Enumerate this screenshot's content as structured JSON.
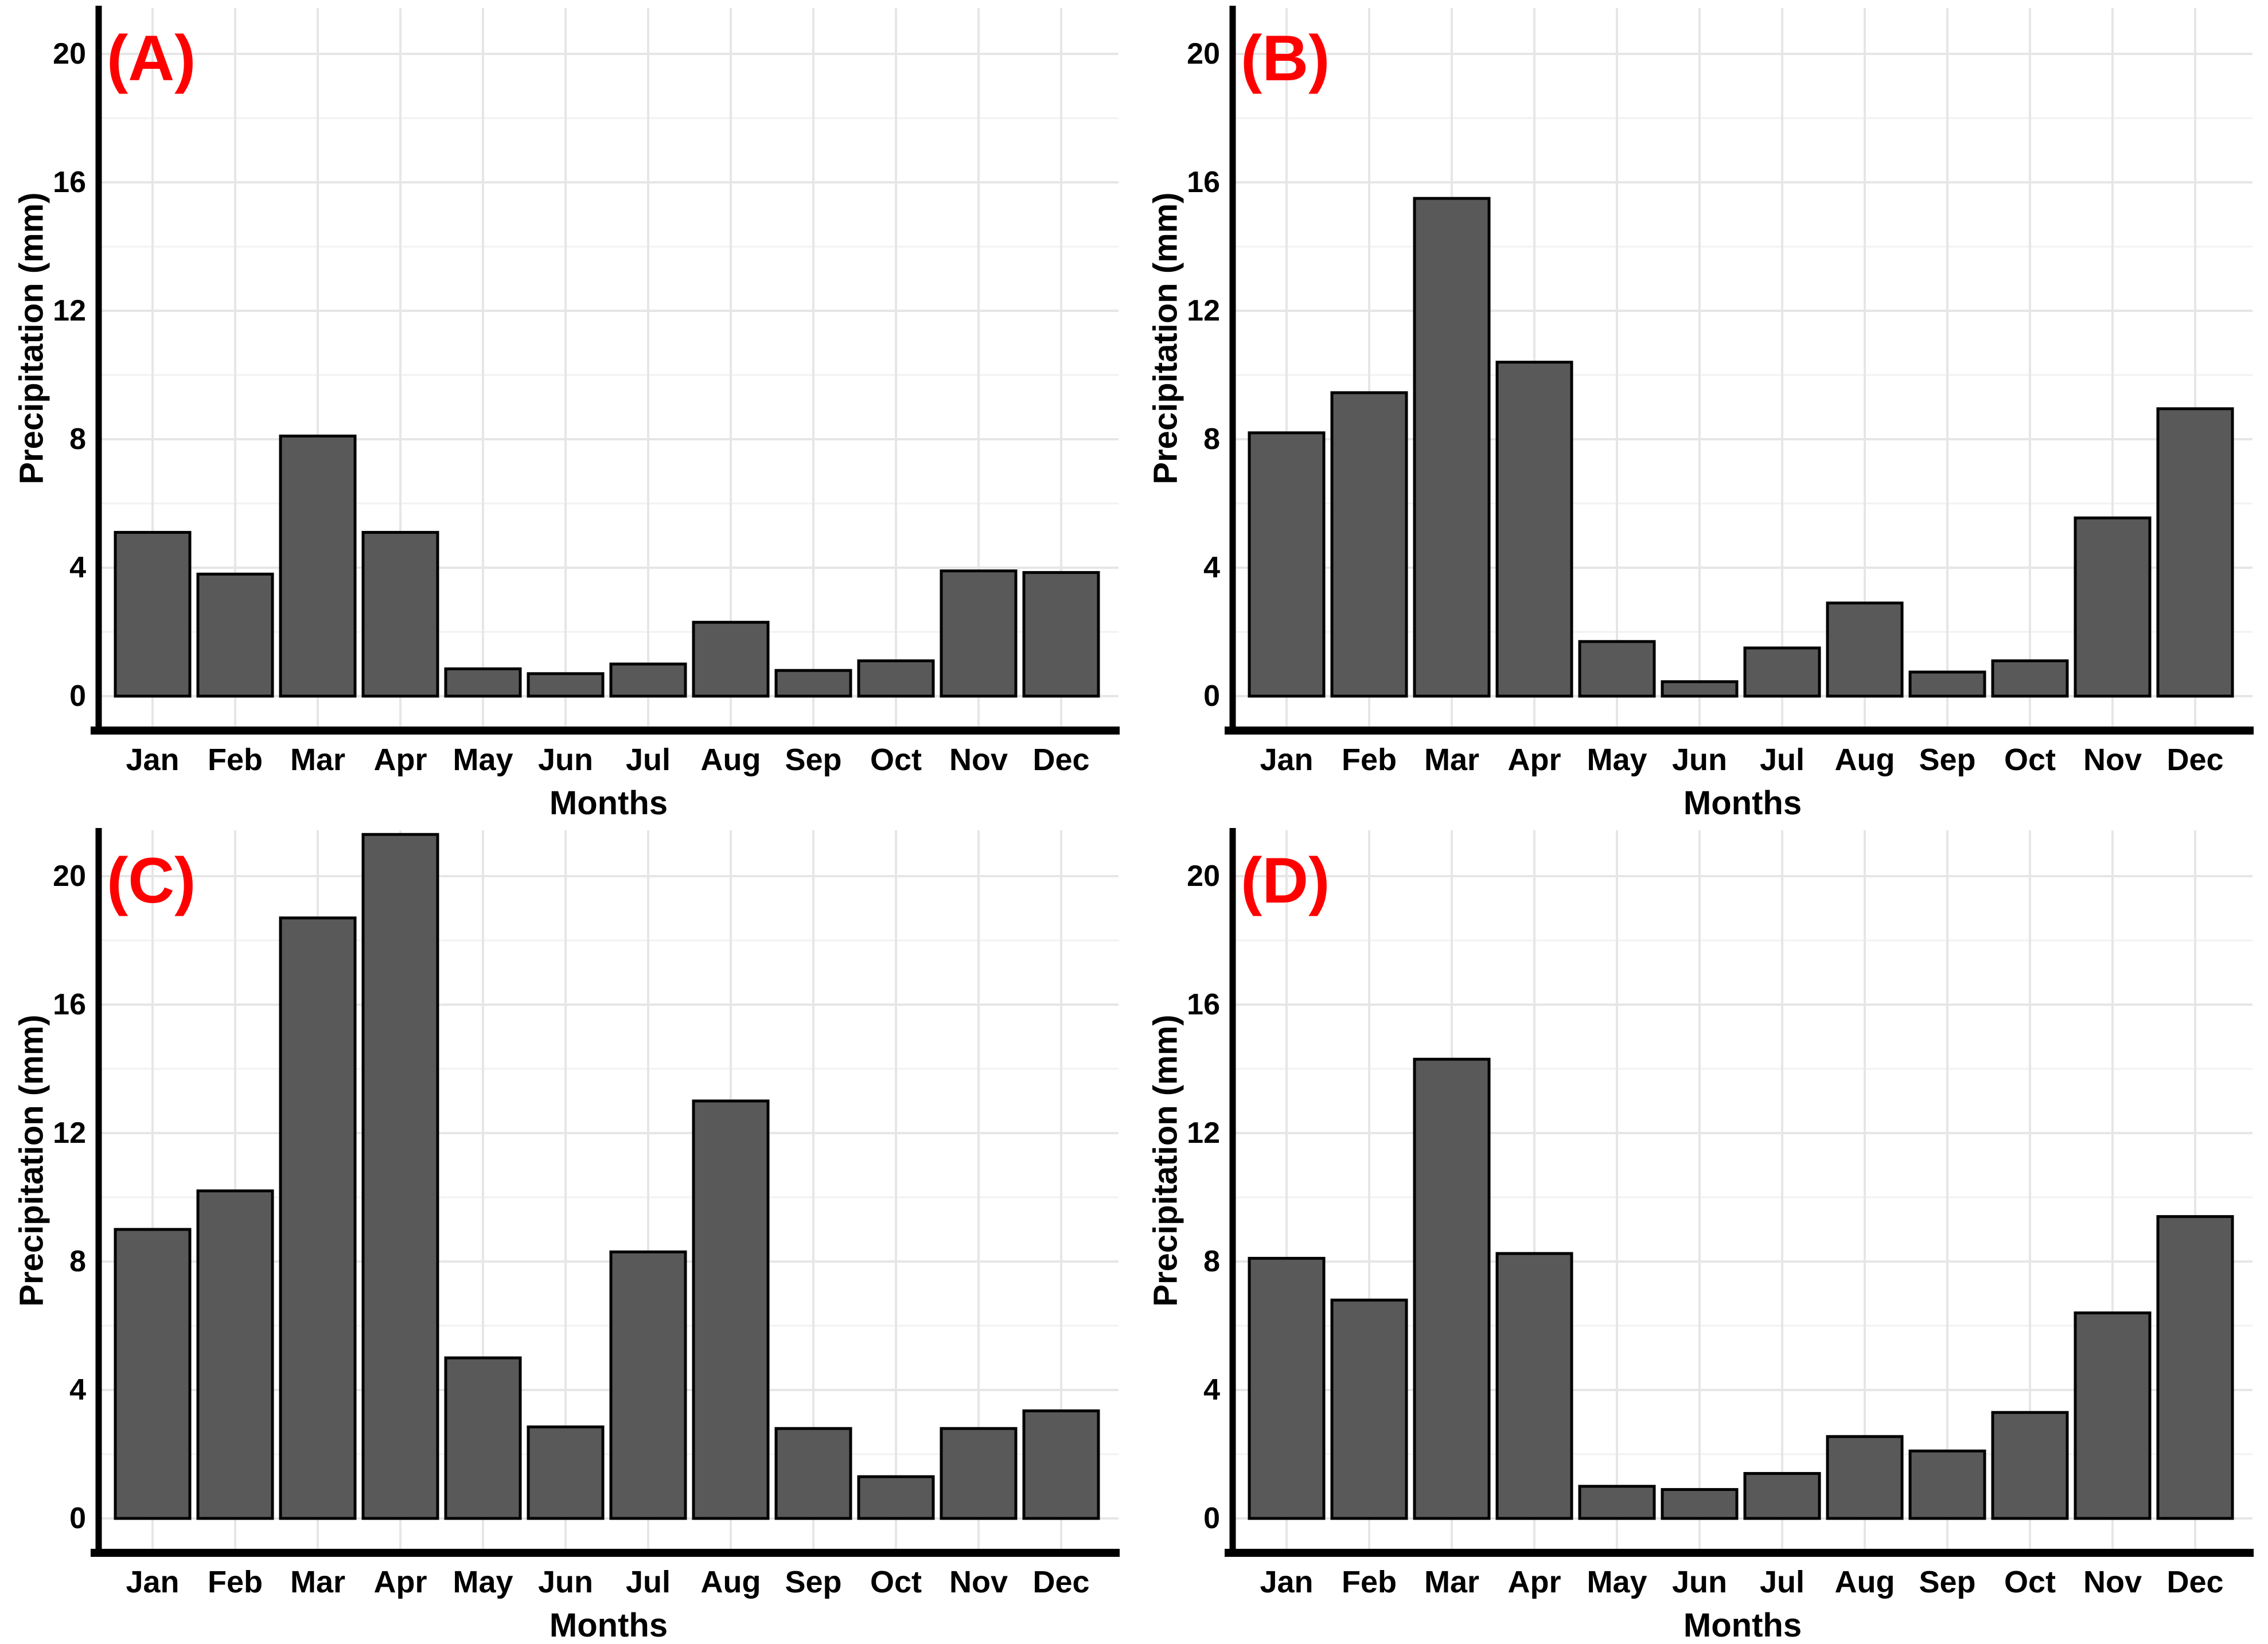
{
  "figure": {
    "type": "2x2 precipitation bar chart grid",
    "panel_letters": [
      "(A)",
      "(B)",
      "(C)",
      "(D)"
    ]
  },
  "style": {
    "background": "#ffffff",
    "bar_fill": "#595959",
    "bar_stroke": "#000000",
    "axis_color": "#000000",
    "text_color": "#000000",
    "panel_letter_color": "#ff0000",
    "grid_major": "#e6e6e6",
    "grid_minor": "#f2f2f2"
  },
  "chart_data": [
    {
      "type": "bar",
      "panel_label": "(A)",
      "xlabel": "Months",
      "ylabel": "Precipitation (mm)",
      "categories": [
        "Jan",
        "Feb",
        "Mar",
        "Apr",
        "May",
        "Jun",
        "Jul",
        "Aug",
        "Sep",
        "Oct",
        "Nov",
        "Dec"
      ],
      "values": [
        5.1,
        3.8,
        8.1,
        5.1,
        0.85,
        0.7,
        1.0,
        2.3,
        0.8,
        1.1,
        3.9,
        3.85
      ],
      "yticks": [
        0,
        4,
        8,
        12,
        16,
        20
      ],
      "yminor": [
        2,
        6,
        10,
        14,
        18
      ],
      "ylim": [
        0,
        21.4
      ],
      "grid": true,
      "legend": false
    },
    {
      "type": "bar",
      "panel_label": "(B)",
      "xlabel": "Months",
      "ylabel": "Precipitation (mm)",
      "categories": [
        "Jan",
        "Feb",
        "Mar",
        "Apr",
        "May",
        "Jun",
        "Jul",
        "Aug",
        "Sep",
        "Oct",
        "Nov",
        "Dec"
      ],
      "values": [
        8.2,
        9.45,
        15.5,
        10.4,
        1.7,
        0.45,
        1.5,
        2.9,
        0.75,
        1.1,
        5.55,
        8.95
      ],
      "yticks": [
        0,
        4,
        8,
        12,
        16,
        20
      ],
      "yminor": [
        2,
        6,
        10,
        14,
        18
      ],
      "ylim": [
        0,
        21.4
      ],
      "grid": true,
      "legend": false
    },
    {
      "type": "bar",
      "panel_label": "(C)",
      "xlabel": "Months",
      "ylabel": "Precipitation (mm)",
      "categories": [
        "Jan",
        "Feb",
        "Mar",
        "Apr",
        "May",
        "Jun",
        "Jul",
        "Aug",
        "Sep",
        "Oct",
        "Nov",
        "Dec"
      ],
      "values": [
        9.0,
        10.2,
        18.7,
        21.3,
        5.0,
        2.85,
        8.3,
        13.0,
        2.8,
        1.3,
        2.8,
        3.35
      ],
      "yticks": [
        0,
        4,
        8,
        12,
        16,
        20
      ],
      "yminor": [
        2,
        6,
        10,
        14,
        18
      ],
      "ylim": [
        0,
        21.4
      ],
      "grid": true,
      "legend": false
    },
    {
      "type": "bar",
      "panel_label": "(D)",
      "xlabel": "Months",
      "ylabel": "Precipitation (mm)",
      "categories": [
        "Jan",
        "Feb",
        "Mar",
        "Apr",
        "May",
        "Jun",
        "Jul",
        "Aug",
        "Sep",
        "Oct",
        "Nov",
        "Dec"
      ],
      "values": [
        8.1,
        6.8,
        14.3,
        8.25,
        1.0,
        0.9,
        1.4,
        2.55,
        2.1,
        3.3,
        6.4,
        9.4
      ],
      "yticks": [
        0,
        4,
        8,
        12,
        16,
        20
      ],
      "yminor": [
        2,
        6,
        10,
        14,
        18
      ],
      "ylim": [
        0,
        21.4
      ],
      "grid": true,
      "legend": false
    }
  ]
}
